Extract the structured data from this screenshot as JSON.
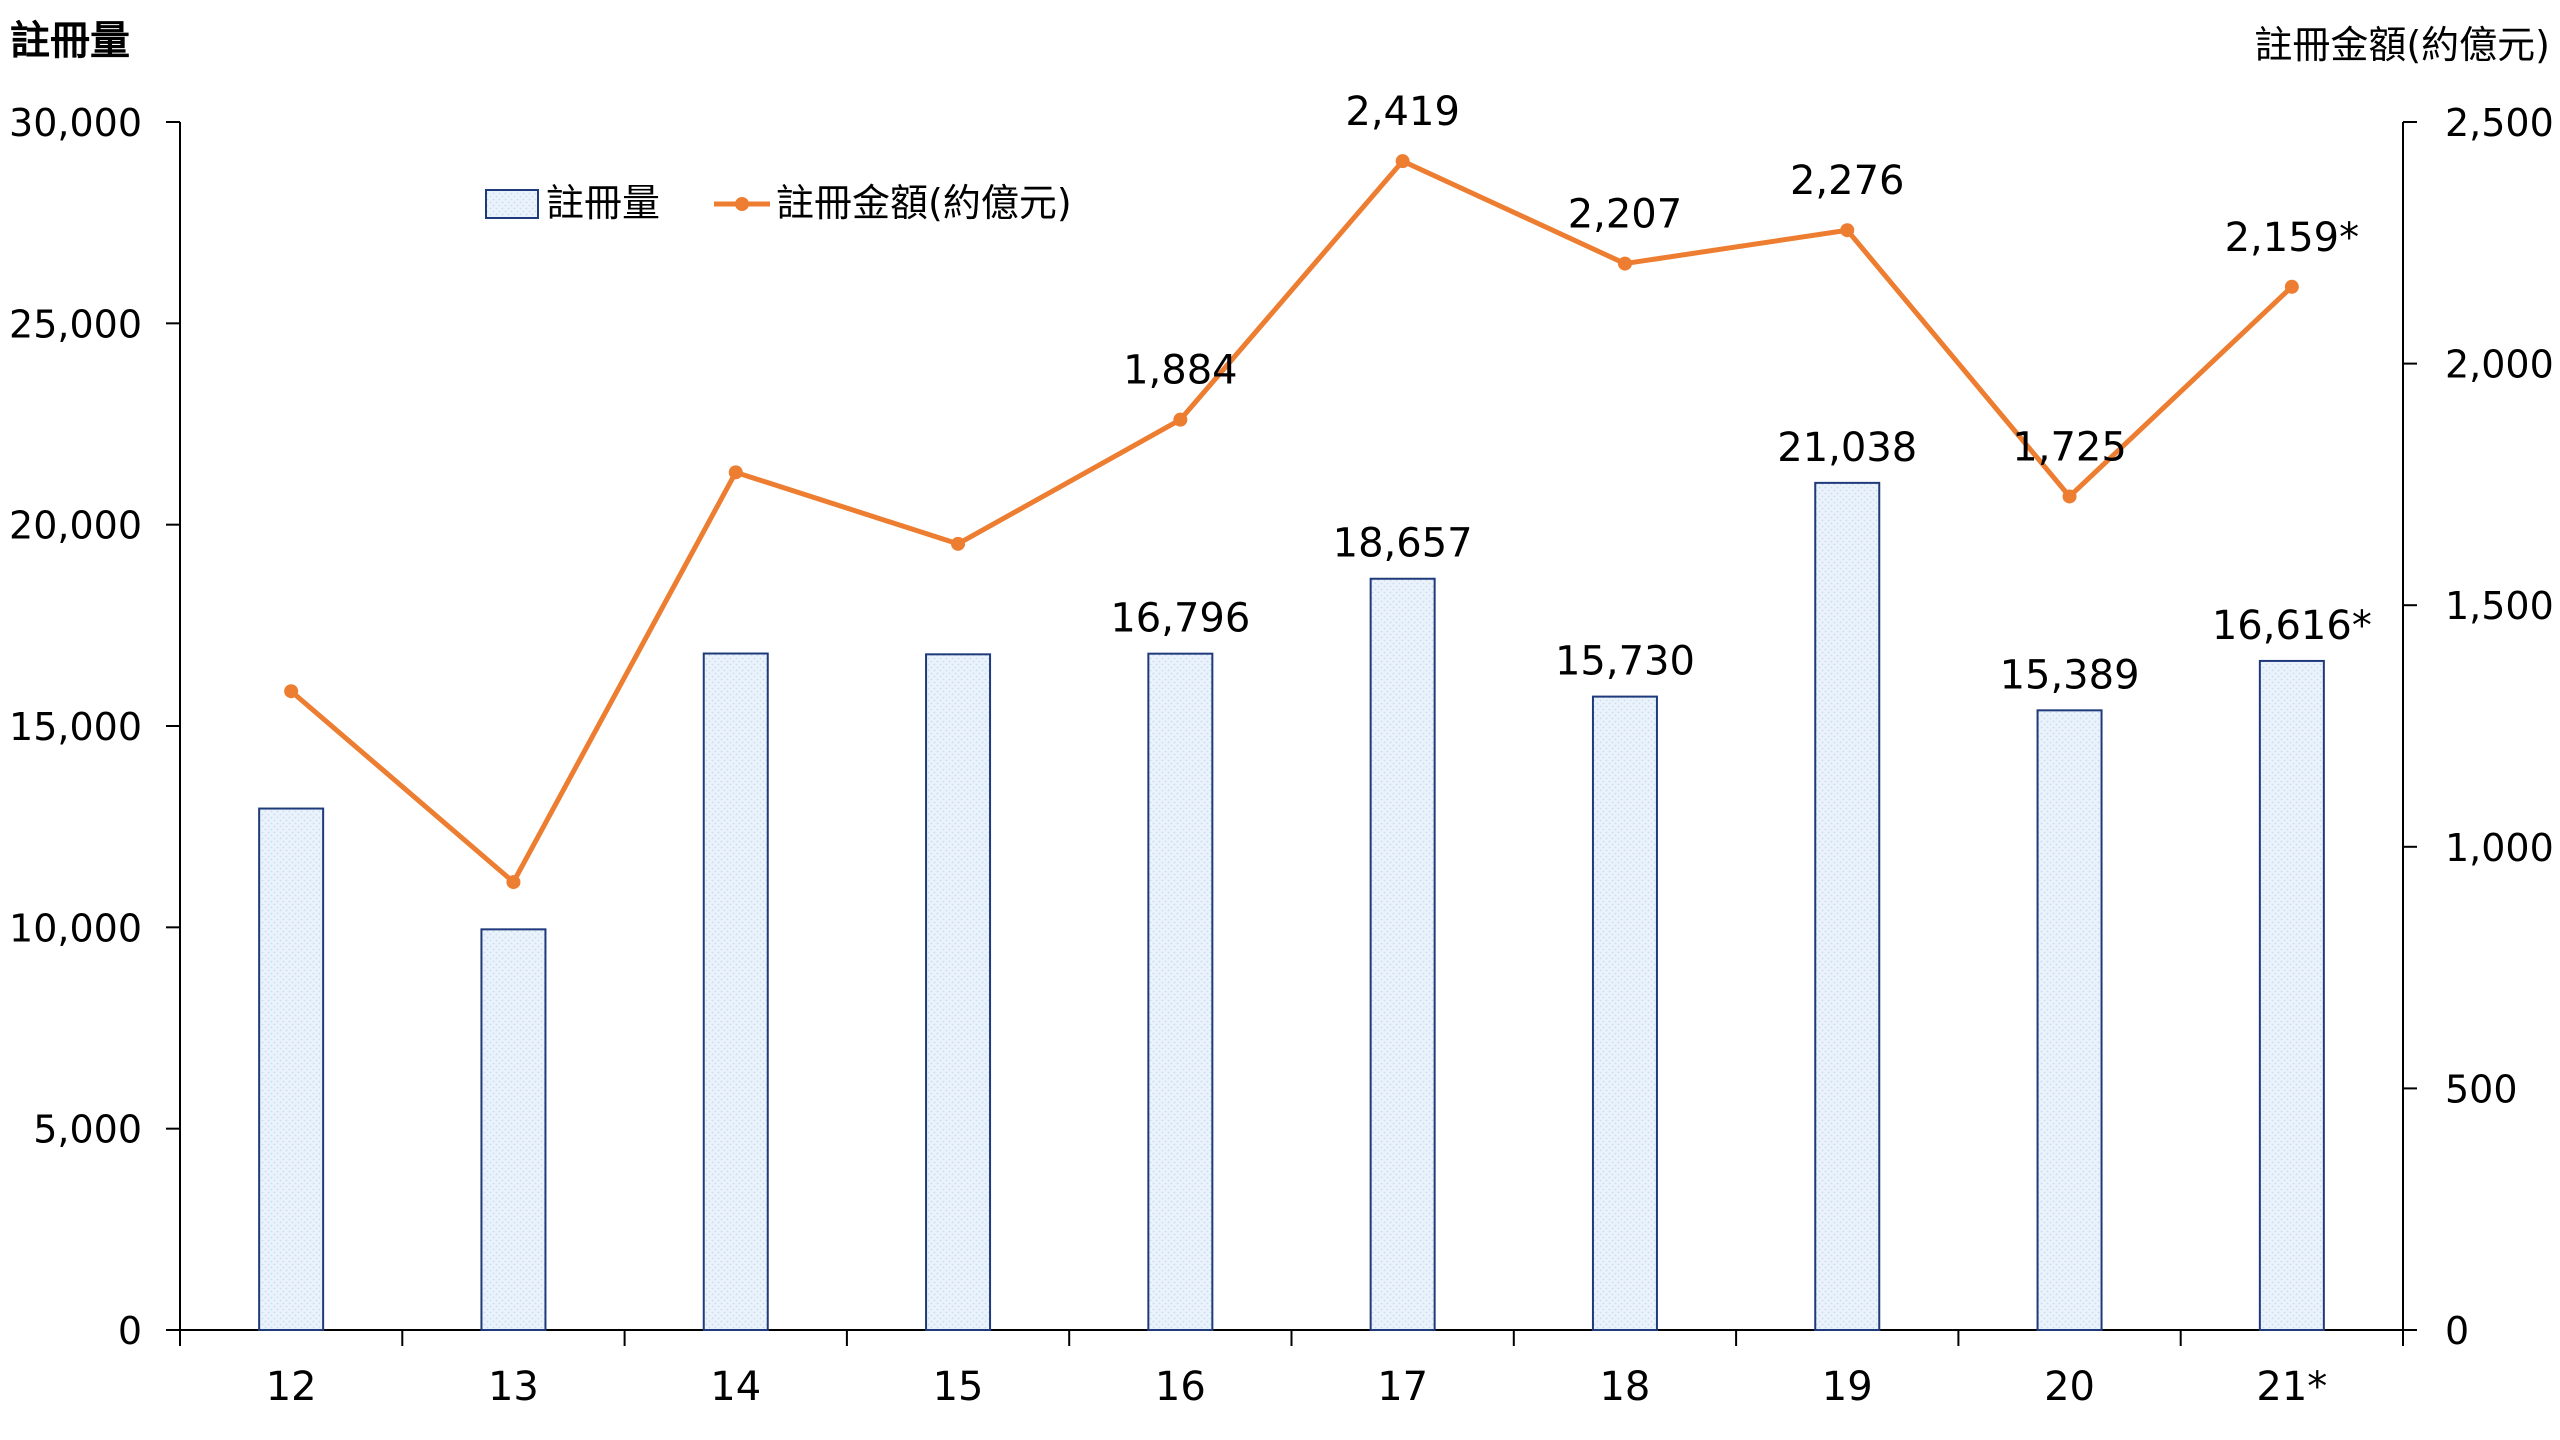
{
  "chart_data": {
    "type": "bar+line",
    "categories": [
      "12",
      "13",
      "14",
      "15",
      "16",
      "17",
      "18",
      "19",
      "20",
      "21*"
    ],
    "series": [
      {
        "name": "註冊量",
        "type": "bar",
        "axis": "left",
        "values": [
          12950,
          9950,
          16800,
          16780,
          16796,
          18657,
          15730,
          21038,
          15389,
          16616
        ],
        "labels": [
          "",
          "",
          "",
          "",
          "16,796",
          "18,657",
          "15,730",
          "21,038",
          "15,389",
          "16,616*"
        ],
        "color": "#1f3a7a",
        "fill": "#e8f1fa"
      },
      {
        "name": "註冊金額(約億元)",
        "type": "line",
        "axis": "right",
        "values": [
          1322,
          927,
          1775,
          1627,
          1884,
          2419,
          2207,
          2276,
          1725,
          2159
        ],
        "labels": [
          "",
          "",
          "",
          "",
          "1,884",
          "2,419",
          "2,207",
          "2,276",
          "1,725",
          "2,159*"
        ],
        "color": "#ed7d31"
      }
    ],
    "left_axis": {
      "title": "註冊量",
      "ylim": [
        0,
        30000
      ],
      "ticks": [
        "0",
        "5,000",
        "10,000",
        "15,000",
        "20,000",
        "25,000",
        "30,000"
      ]
    },
    "right_axis": {
      "title": "註冊金額(約億元)",
      "ylim": [
        0,
        2500
      ],
      "ticks": [
        "0",
        "500",
        "1,000",
        "1,500",
        "2,000",
        "2,500"
      ]
    },
    "legend": {
      "placement": "top-left-inside"
    },
    "grid": false
  }
}
